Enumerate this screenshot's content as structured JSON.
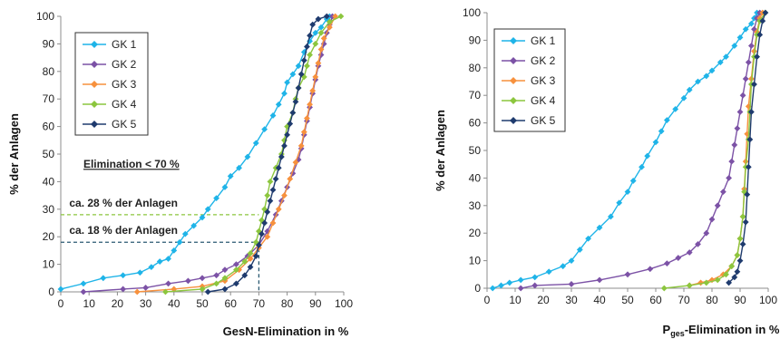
{
  "chart_data": [
    {
      "type": "line",
      "xlabel": "GesN-Elimination in %",
      "ylabel": "% der Anlagen",
      "xlim": [
        0,
        100
      ],
      "ylim": [
        0,
        100
      ],
      "xticks": [
        0,
        10,
        20,
        30,
        40,
        50,
        60,
        70,
        80,
        90,
        100
      ],
      "yticks": [
        0,
        10,
        20,
        30,
        40,
        50,
        60,
        70,
        80,
        90,
        100
      ],
      "grid": false,
      "legend_position": "top-left",
      "series": [
        {
          "name": "GK 1",
          "color": "#1fb4e8",
          "marker": "diamond",
          "points": [
            [
              0,
              1
            ],
            [
              8,
              3
            ],
            [
              15,
              5
            ],
            [
              22,
              6
            ],
            [
              28,
              7
            ],
            [
              32,
              9
            ],
            [
              35,
              11
            ],
            [
              38,
              12
            ],
            [
              40,
              15
            ],
            [
              42,
              18
            ],
            [
              44,
              21
            ],
            [
              47,
              24
            ],
            [
              50,
              27
            ],
            [
              52,
              30
            ],
            [
              55,
              34
            ],
            [
              58,
              38
            ],
            [
              60,
              42
            ],
            [
              63,
              45
            ],
            [
              66,
              49
            ],
            [
              69,
              54
            ],
            [
              72,
              59
            ],
            [
              75,
              64
            ],
            [
              77,
              68
            ],
            [
              79,
              72
            ],
            [
              80,
              76
            ],
            [
              82,
              79
            ],
            [
              84,
              82
            ],
            [
              86,
              87
            ],
            [
              88,
              91
            ],
            [
              90,
              94
            ],
            [
              92,
              96
            ],
            [
              94,
              99
            ],
            [
              95,
              100
            ]
          ]
        },
        {
          "name": "GK 2",
          "color": "#7c52a6",
          "marker": "diamond",
          "points": [
            [
              8,
              0
            ],
            [
              22,
              1
            ],
            [
              30,
              1.5
            ],
            [
              38,
              3
            ],
            [
              45,
              4
            ],
            [
              50,
              5
            ],
            [
              55,
              6
            ],
            [
              58,
              8
            ],
            [
              62,
              10
            ],
            [
              66,
              13
            ],
            [
              70,
              17
            ],
            [
              73,
              22
            ],
            [
              76,
              28
            ],
            [
              78,
              33
            ],
            [
              80,
              38
            ],
            [
              82,
              43
            ],
            [
              84,
              48
            ],
            [
              85,
              52
            ],
            [
              86,
              57
            ],
            [
              87,
              62
            ],
            [
              88,
              67
            ],
            [
              89,
              72
            ],
            [
              90,
              77
            ],
            [
              91,
              82
            ],
            [
              92,
              86
            ],
            [
              93,
              90
            ],
            [
              94,
              94
            ],
            [
              95,
              97
            ],
            [
              96,
              100
            ]
          ]
        },
        {
          "name": "GK 3",
          "color": "#f7913d",
          "marker": "diamond",
          "points": [
            [
              27,
              0
            ],
            [
              40,
              1
            ],
            [
              50,
              2
            ],
            [
              58,
              4
            ],
            [
              63,
              8
            ],
            [
              67,
              12
            ],
            [
              70,
              16
            ],
            [
              73,
              20
            ],
            [
              75,
              25
            ],
            [
              77,
              30
            ],
            [
              79,
              35
            ],
            [
              81,
              41
            ],
            [
              83,
              47
            ],
            [
              85,
              53
            ],
            [
              86,
              58
            ],
            [
              87,
              63
            ],
            [
              88,
              68
            ],
            [
              89,
              73
            ],
            [
              90,
              78
            ],
            [
              91,
              83
            ],
            [
              92,
              88
            ],
            [
              93,
              92
            ],
            [
              95,
              96
            ],
            [
              97,
              100
            ]
          ]
        },
        {
          "name": "GK 4",
          "color": "#8cc63e",
          "marker": "diamond",
          "points": [
            [
              37,
              0
            ],
            [
              50,
              1
            ],
            [
              55,
              3
            ],
            [
              58,
              5
            ],
            [
              62,
              8
            ],
            [
              65,
              11
            ],
            [
              67,
              14
            ],
            [
              69,
              18
            ],
            [
              70,
              22
            ],
            [
              71,
              26
            ],
            [
              72,
              30
            ],
            [
              73,
              35
            ],
            [
              74,
              40
            ],
            [
              76,
              45
            ],
            [
              78,
              50
            ],
            [
              79,
              55
            ],
            [
              80,
              60
            ],
            [
              82,
              65
            ],
            [
              83,
              70
            ],
            [
              84,
              74
            ],
            [
              86,
              78
            ],
            [
              87,
              82
            ],
            [
              88,
              86
            ],
            [
              90,
              90
            ],
            [
              92,
              94
            ],
            [
              95,
              98
            ],
            [
              99,
              100
            ]
          ]
        },
        {
          "name": "GK 5",
          "color": "#1f3b6e",
          "marker": "diamond",
          "points": [
            [
              52,
              0
            ],
            [
              58,
              1
            ],
            [
              62,
              3
            ],
            [
              65,
              6
            ],
            [
              67,
              9
            ],
            [
              69,
              13
            ],
            [
              70,
              17
            ],
            [
              71,
              21
            ],
            [
              72,
              25
            ],
            [
              73,
              29
            ],
            [
              74,
              33
            ],
            [
              75,
              37
            ],
            [
              76,
              41
            ],
            [
              77,
              45
            ],
            [
              78,
              49
            ],
            [
              79,
              53
            ],
            [
              80,
              57
            ],
            [
              81,
              61
            ],
            [
              82,
              65
            ],
            [
              83,
              69
            ],
            [
              84,
              74
            ],
            [
              85,
              79
            ],
            [
              86,
              84
            ],
            [
              87,
              89
            ],
            [
              88,
              93
            ],
            [
              89,
              97
            ],
            [
              91,
              99
            ],
            [
              94,
              100
            ]
          ]
        }
      ],
      "annotations": [
        {
          "text": "Elimination  < 70 %",
          "color": "#a6a6a6",
          "underline": true,
          "x": 8,
          "y": 45
        },
        {
          "text": "ca. 28 % der Anlagen",
          "color": "#8cc63e",
          "x": 3,
          "y": 31,
          "hline_y": 28,
          "hline_to_x": 70
        },
        {
          "text": "ca. 18 % der Anlagen",
          "color": "#2b5a72",
          "x": 3,
          "y": 21,
          "hline_y": 18,
          "hline_to_x": 70,
          "vline_x": 70
        }
      ]
    },
    {
      "type": "line",
      "xlabel_main": "P",
      "xlabel_sub": "ges",
      "xlabel_rest": "-Elimination in %",
      "ylabel": "% der Anlagen",
      "xlim": [
        0,
        100
      ],
      "ylim": [
        0,
        100
      ],
      "xticks": [
        0,
        10,
        20,
        30,
        40,
        50,
        60,
        70,
        80,
        90,
        100
      ],
      "yticks": [
        0,
        10,
        20,
        30,
        40,
        50,
        60,
        70,
        80,
        90,
        100
      ],
      "grid": false,
      "legend_position": "top-left",
      "series": [
        {
          "name": "GK 1",
          "color": "#1fb4e8",
          "marker": "diamond",
          "points": [
            [
              2,
              0
            ],
            [
              5,
              1
            ],
            [
              8,
              2
            ],
            [
              12,
              3
            ],
            [
              17,
              4
            ],
            [
              22,
              6
            ],
            [
              27,
              8
            ],
            [
              30,
              10
            ],
            [
              33,
              14
            ],
            [
              36,
              18
            ],
            [
              40,
              22
            ],
            [
              44,
              26
            ],
            [
              47,
              31
            ],
            [
              50,
              35
            ],
            [
              52,
              39
            ],
            [
              55,
              44
            ],
            [
              57,
              48
            ],
            [
              60,
              53
            ],
            [
              62,
              57
            ],
            [
              64,
              61
            ],
            [
              67,
              65
            ],
            [
              70,
              69
            ],
            [
              72,
              72
            ],
            [
              75,
              75
            ],
            [
              78,
              77
            ],
            [
              80,
              79
            ],
            [
              83,
              82
            ],
            [
              85,
              84
            ],
            [
              88,
              88
            ],
            [
              90,
              91
            ],
            [
              92,
              94
            ],
            [
              94,
              96
            ],
            [
              95,
              98
            ],
            [
              96,
              100
            ]
          ]
        },
        {
          "name": "GK 2",
          "color": "#7c52a6",
          "marker": "diamond",
          "points": [
            [
              12,
              0
            ],
            [
              17,
              1
            ],
            [
              30,
              1.5
            ],
            [
              40,
              3
            ],
            [
              50,
              5
            ],
            [
              58,
              7
            ],
            [
              64,
              9
            ],
            [
              68,
              11
            ],
            [
              72,
              13
            ],
            [
              75,
              16
            ],
            [
              78,
              20
            ],
            [
              80,
              25
            ],
            [
              82,
              30
            ],
            [
              84,
              35
            ],
            [
              86,
              40
            ],
            [
              87,
              46
            ],
            [
              88,
              52
            ],
            [
              89,
              58
            ],
            [
              90,
              64
            ],
            [
              91,
              70
            ],
            [
              92,
              76
            ],
            [
              93,
              82
            ],
            [
              94,
              88
            ],
            [
              95,
              94
            ],
            [
              96,
              98
            ],
            [
              97,
              100
            ]
          ]
        },
        {
          "name": "GK 3",
          "color": "#f7913d",
          "marker": "diamond",
          "points": [
            [
              72,
              1
            ],
            [
              76,
              2
            ],
            [
              80,
              3
            ],
            [
              84,
              5
            ],
            [
              87,
              8
            ],
            [
              89,
              12
            ],
            [
              90,
              18
            ],
            [
              91,
              26
            ],
            [
              91.5,
              36
            ],
            [
              92,
              46
            ],
            [
              92.5,
              56
            ],
            [
              93,
              66
            ],
            [
              94,
              76
            ],
            [
              95,
              86
            ],
            [
              96,
              93
            ],
            [
              97,
              98
            ],
            [
              98,
              100
            ]
          ]
        },
        {
          "name": "GK 4",
          "color": "#8cc63e",
          "marker": "diamond",
          "points": [
            [
              63,
              0
            ],
            [
              72,
              1
            ],
            [
              78,
              2
            ],
            [
              82,
              3
            ],
            [
              85,
              5
            ],
            [
              87,
              8
            ],
            [
              89,
              12
            ],
            [
              90,
              18
            ],
            [
              91,
              26
            ],
            [
              91.5,
              35
            ],
            [
              92,
              44
            ],
            [
              93,
              54
            ],
            [
              93.5,
              64
            ],
            [
              94,
              74
            ],
            [
              95,
              84
            ],
            [
              96,
              92
            ],
            [
              97,
              97
            ],
            [
              99,
              100
            ]
          ]
        },
        {
          "name": "GK 5",
          "color": "#1f3b6e",
          "marker": "diamond",
          "points": [
            [
              86,
              2
            ],
            [
              88,
              4
            ],
            [
              89,
              6
            ],
            [
              90,
              10
            ],
            [
              91,
              16
            ],
            [
              92,
              24
            ],
            [
              92.5,
              34
            ],
            [
              93,
              44
            ],
            [
              93.5,
              54
            ],
            [
              94,
              64
            ],
            [
              95,
              74
            ],
            [
              96,
              84
            ],
            [
              97,
              92
            ],
            [
              98,
              97
            ],
            [
              99,
              100
            ]
          ]
        }
      ]
    }
  ]
}
